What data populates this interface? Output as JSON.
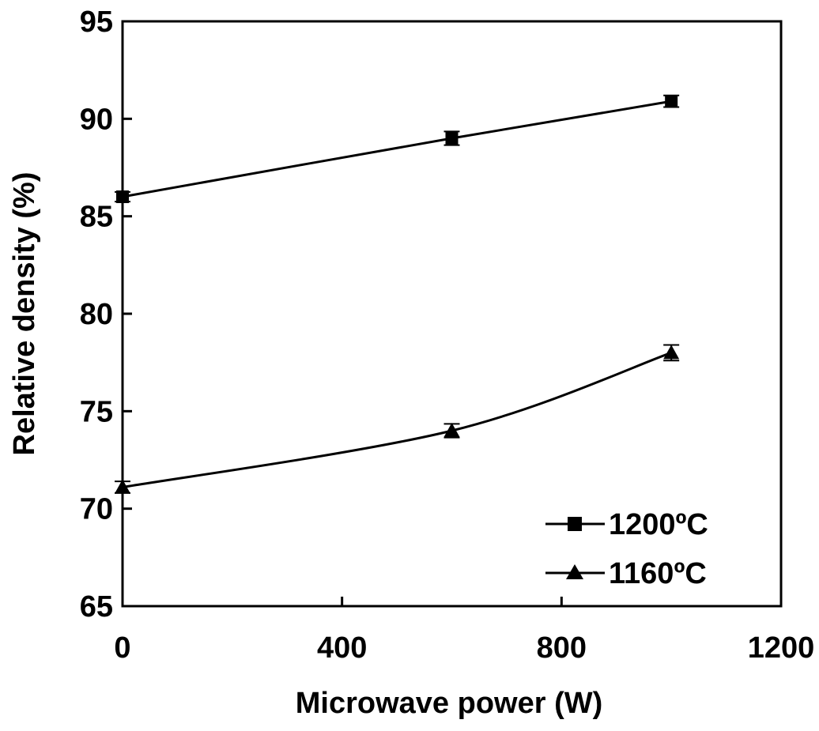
{
  "chart_data": {
    "type": "line",
    "title": "",
    "xlabel": "Microwave power (W)",
    "ylabel": "Relative density (%)",
    "xlim": [
      0,
      1200
    ],
    "ylim": [
      65,
      95
    ],
    "xticks": [
      "0",
      "400",
      "800",
      "1200"
    ],
    "yticks": [
      "65",
      "70",
      "75",
      "80",
      "85",
      "90",
      "95"
    ],
    "grid": false,
    "legend_position": "bottom-right",
    "series": [
      {
        "name": "1200ºC",
        "marker": "square",
        "x": [
          0,
          600,
          1000
        ],
        "y": [
          86.0,
          89.0,
          90.9
        ],
        "error": [
          0.25,
          0.35,
          0.3
        ]
      },
      {
        "name": "1160ºC",
        "marker": "triangle",
        "x": [
          0,
          600,
          1000
        ],
        "y": [
          71.1,
          74.0,
          78.0
        ],
        "error": [
          0.3,
          0.35,
          0.4
        ]
      }
    ]
  }
}
